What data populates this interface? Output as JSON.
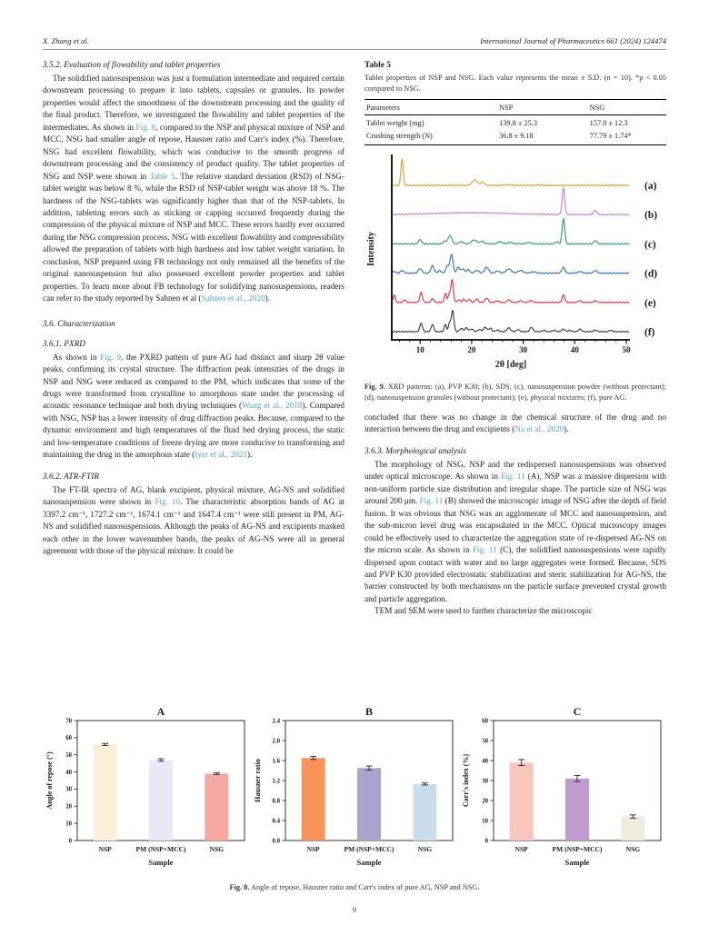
{
  "header": {
    "author": "X. Zhang et al.",
    "journal": "International Journal of Pharmaceutics 661 (2024) 124474"
  },
  "page_number": "9",
  "accent_link_color": "#4da6d9",
  "left": {
    "s352_heading": "3.5.2. Evaluation of flowability and tablet properties",
    "p352": [
      {
        "t": "The solidified nanosuspension was just a formulation intermediate and required certain downstream processing to prepare it into tablets, capsules or granules. Its powder properties would affect the smoothness of the downstream processing and the quality of the final product. Therefore, we investigated the flowability and tablet properties of the intermediates. As shown in "
      },
      {
        "t": "Fig. 8",
        "link": true
      },
      {
        "t": ", compared to the NSP and physical mixture of NSP and MCC, NSG had smaller angle of repose, Hausner ratio and Carr's index (%). Therefore, NSG had excellent flowability, which was conducive to the smooth progress of downstream processing and the consistency of product quality. The tablet properties of NSG and NSP were shown in "
      },
      {
        "t": "Table 5",
        "link": true
      },
      {
        "t": ". The relative standard deviation (RSD) of NSG-tablet weight was below 8 %, while the RSD of NSP-tablet weight was above 18 %. The hardness of the NSG-tablets was significantly higher than that of the NSP-tablets. In addition, tableting errors such as sticking or capping occurred frequently during the compression of the physical mixture of NSP and MCC. These errors hardly ever occurred during the NSG compression process. NSG with excellent flowability and compressibility allowed the preparation of tablets with high hardness and low tablet weight variation. In conclusion, NSP prepared using FB technology not only remained all the benefits of the original nanosuspension but also possessed excellent powder properties and tablet properties. To learn more about FB technology for solidifying nanosuspensions, readers can refer to the study reported by Sahnen et al ("
      },
      {
        "t": "Sahnen et al., 2020",
        "link": true
      },
      {
        "t": ")."
      }
    ],
    "s36_heading": "3.6. Characterization",
    "s361_heading": "3.6.1. PXRD",
    "p361": [
      {
        "t": "As shown in "
      },
      {
        "t": "Fig. 9",
        "link": true
      },
      {
        "t": ", the PXRD pattern of pure AG had distinct and sharp 2θ value peaks, confirming its crystal structure. The diffraction peak intensities of the drugs in NSP and NSG were reduced as compared to the PM, which indicates that some of the drugs were transformed from crystalline to amorphous state under the processing of acoustic resonance technique and both drying techniques ("
      },
      {
        "t": "Wang et al., 2018",
        "link": true
      },
      {
        "t": "). Compared with NSG, NSP has a lower intensity of drug diffraction peaks. Because, compared to the dynamic environment and high temperatures of the fluid bed drying process, the static and low-temperature conditions of freeze drying are more conducive to transforming and maintaining the drug in the amorphous state ("
      },
      {
        "t": "Iyer et al., 2021",
        "link": true
      },
      {
        "t": ")."
      }
    ],
    "s362_heading": "3.6.2. ATR-FTIR",
    "p362": [
      {
        "t": "The FT-IR spectra of AG, blank excipient, physical mixture, AG-NS and solidified nanosuspension were shown in "
      },
      {
        "t": "Fig. 10",
        "link": true
      },
      {
        "t": ". The characteristic absorption bands of AG at 3397.2 cm⁻¹, 1727.2 cm⁻¹, 1674.1 cm⁻¹ and 1647.4 cm⁻¹ were still present in PM, AG-NS and solidified nanosuspensions. Although the peaks of AG-NS and excipients masked each other in the lower wavenumber bands, the peaks of AG-NS were all in general agreement with those of the physical mixture. It could be"
      }
    ]
  },
  "right": {
    "p_cont": [
      {
        "t": "concluded that there was no change in the chemical structure of the drug and no interaction between the drug and excipients ("
      },
      {
        "t": "Na et al., 2020",
        "link": true
      },
      {
        "t": ")."
      }
    ],
    "s363_heading": "3.6.3. Morphological analysis",
    "p363a": [
      {
        "t": "The morphology of NSG, NSP and the redispersed nanosuspensions was observed under optical microscope. As shown in "
      },
      {
        "t": "Fig. 11",
        "link": true
      },
      {
        "t": " (A), NSP was a massive dispersion with non-uniform particle size distribution and irregular shape. The particle size of NSG was around 200 μm. "
      },
      {
        "t": "Fig. 11",
        "link": true
      },
      {
        "t": " (B) showed the microscopic image of NSG after the depth of field fusion. It was obvious that NSG was an agglomerate of MCC and nanosuspension, and the sub-micron level drug was encapsulated in the MCC. Optical microscopy images could be effectively used to characterize the aggregation state of re-dispersed AG-NS on the micron scale. As shown in "
      },
      {
        "t": "Fig. 11",
        "link": true
      },
      {
        "t": " (C), the solidified nanosuspensions were rapidly dispersed upon contact with water and no large aggregates were formed. Because, SDS and PVP K30 provided electrostatic stabilization and steric stabilization for AG-NS, the barrier constructed by both mechanisms on the particle surface prevented crystal growth and particle aggregation."
      }
    ],
    "p363b": [
      {
        "t": "TEM and SEM were used to further characterize the microscopic"
      }
    ]
  },
  "table5": {
    "title": "Table 5",
    "caption": "Tablet properties of NSP and NSG. Each value represents the mean ± S.D. (n = 10). *p < 0.05 compared to NSG.",
    "headers": [
      "Parameters",
      "NSP",
      "NSG"
    ],
    "rows": [
      {
        "cells": [
          "Tablet weight (mg)",
          "139.8 ± 25.3",
          "157.0 ± 12.3"
        ]
      },
      {
        "cells": [
          "Crushing strength (N)",
          "36.8 ± 9.18",
          "77.79 ± 1.74*"
        ]
      }
    ]
  },
  "fig9": {
    "caption": [
      {
        "t": "Fig. 9.",
        "b": true
      },
      {
        "t": " XRD patterns: (a), PVP K30; (b), SDS; (c), nanosuspension powder (without protectant); (d), nanosuspension granules (without protectant); (e), physical mixtures; (f), pure AG."
      }
    ]
  },
  "fig8": {
    "caption": [
      {
        "t": "Fig. 8.",
        "b": true
      },
      {
        "t": " Angle of repose, Hausner ratio and Carr's index of pure AG, NSP and NSG."
      }
    ]
  },
  "chart_data": [
    {
      "type": "line",
      "name": "xrd-patterns",
      "xlabel": "2θ [deg]",
      "ylabel": "Intensity",
      "xlim": [
        4.5,
        50.7
      ],
      "xticks": [
        10,
        20,
        30,
        40,
        50
      ],
      "legend_position": "right-outside",
      "series": [
        {
          "name": "(a)",
          "label": "PVP K30",
          "color": "#E0A02C",
          "peaks": [
            [
              6.5,
              1.0,
              0.22
            ],
            [
              20.6,
              0.2,
              0.5
            ],
            [
              22.1,
              0.13,
              0.35
            ],
            [
              27,
              0.03,
              0.5
            ],
            [
              33,
              0.02,
              0.5
            ]
          ]
        },
        {
          "name": "(b)",
          "label": "SDS",
          "color": "#C77FD8",
          "peaks": [
            [
              20,
              0.07,
              7
            ],
            [
              37.8,
              1.0,
              0.25
            ],
            [
              44,
              0.16,
              0.3
            ]
          ]
        },
        {
          "name": "(c)",
          "label": "nanosuspension powder (without protectant)",
          "color": "#2E9E6E",
          "peaks": [
            [
              10,
              0.16,
              0.3
            ],
            [
              14.8,
              0.1,
              0.3
            ],
            [
              15.8,
              0.32,
              0.35
            ],
            [
              18,
              0.08,
              0.4
            ],
            [
              20.5,
              0.15,
              0.5
            ],
            [
              22,
              0.1,
              0.4
            ],
            [
              25.5,
              0.08,
              0.5
            ],
            [
              27.5,
              0.06,
              0.4
            ],
            [
              31,
              0.05,
              0.5
            ],
            [
              36.5,
              0.08,
              0.3
            ],
            [
              37.8,
              0.95,
              0.25
            ],
            [
              44,
              0.13,
              0.3
            ]
          ]
        },
        {
          "name": "(d)",
          "label": "nanosuspension granules (without protectant)",
          "color": "#3372C8",
          "peaks": [
            [
              5,
              0.06,
              0.3
            ],
            [
              6.5,
              0.1,
              0.3
            ],
            [
              10,
              0.17,
              0.35
            ],
            [
              12.4,
              0.28,
              0.3
            ],
            [
              13.8,
              0.1,
              0.3
            ],
            [
              15.3,
              0.28,
              0.3
            ],
            [
              16.1,
              0.7,
              0.28
            ],
            [
              17.4,
              0.22,
              0.3
            ],
            [
              18.3,
              0.16,
              0.3
            ],
            [
              19.3,
              0.13,
              0.3
            ],
            [
              21,
              0.1,
              0.4
            ],
            [
              22.9,
              0.22,
              0.4
            ],
            [
              25,
              0.08,
              0.4
            ],
            [
              27.2,
              0.16,
              0.5
            ],
            [
              29.5,
              0.1,
              0.5
            ],
            [
              32,
              0.05,
              0.5
            ],
            [
              37.8,
              0.22,
              0.3
            ],
            [
              41,
              0.06,
              0.4
            ],
            [
              44,
              0.1,
              0.3
            ]
          ]
        },
        {
          "name": "(e)",
          "label": "physical mixtures",
          "color": "#E23440",
          "peaks": [
            [
              5,
              0.28,
              0.2
            ],
            [
              7,
              0.1,
              0.25
            ],
            [
              10.2,
              0.38,
              0.25
            ],
            [
              12.4,
              0.14,
              0.25
            ],
            [
              14.9,
              0.33,
              0.22
            ],
            [
              15.6,
              0.28,
              0.2
            ],
            [
              16.2,
              0.85,
              0.25
            ],
            [
              17.5,
              0.1,
              0.25
            ],
            [
              18.5,
              0.12,
              0.25
            ],
            [
              19.5,
              0.12,
              0.25
            ],
            [
              21,
              0.13,
              0.3
            ],
            [
              22.9,
              0.16,
              0.3
            ],
            [
              25,
              0.06,
              0.3
            ],
            [
              27.2,
              0.1,
              0.3
            ],
            [
              29.5,
              0.06,
              0.3
            ],
            [
              31.5,
              0.07,
              0.3
            ],
            [
              37.8,
              0.28,
              0.25
            ],
            [
              41,
              0.06,
              0.3
            ],
            [
              44,
              0.06,
              0.3
            ]
          ]
        },
        {
          "name": "(f)",
          "label": "pure AG",
          "color": "#3E3E3E",
          "peaks": [
            [
              10.2,
              0.32,
              0.25
            ],
            [
              12.4,
              0.27,
              0.25
            ],
            [
              14.9,
              0.27,
              0.22
            ],
            [
              15.7,
              0.32,
              0.2
            ],
            [
              16.3,
              0.8,
              0.25
            ],
            [
              18,
              0.12,
              0.3
            ],
            [
              19,
              0.14,
              0.3
            ],
            [
              20,
              0.1,
              0.3
            ],
            [
              21.5,
              0.08,
              0.3
            ],
            [
              22.6,
              0.17,
              0.3
            ],
            [
              23.6,
              0.13,
              0.3
            ],
            [
              25,
              0.06,
              0.3
            ],
            [
              27.2,
              0.14,
              0.35
            ],
            [
              29,
              0.08,
              0.3
            ],
            [
              31.6,
              0.16,
              0.3
            ],
            [
              34,
              0.05,
              0.3
            ],
            [
              36,
              0.05,
              0.3
            ],
            [
              37.8,
              0.1,
              0.3
            ],
            [
              39,
              0.05,
              0.3
            ],
            [
              41,
              0.09,
              0.3
            ],
            [
              44,
              0.06,
              0.3
            ],
            [
              47,
              0.05,
              0.3
            ]
          ]
        }
      ]
    },
    {
      "type": "bar",
      "title": "A",
      "categories": [
        "NSP",
        "PM (NSP+MCC)",
        "NSG"
      ],
      "values": [
        56,
        47,
        39
      ],
      "errors": [
        0.6,
        0.7,
        0.5
      ],
      "colors": [
        "#FAF0D8",
        "#E9E9F6",
        "#F5A8A0"
      ],
      "xlabel": "Sample",
      "ylabel": "Angle of repose (°)",
      "ylim": [
        0,
        70
      ],
      "ytick_step": 10,
      "ytick_decimals": 0
    },
    {
      "type": "bar",
      "title": "B",
      "categories": [
        "NSP",
        "PM (NSP+MCC)",
        "NSG"
      ],
      "values": [
        1.65,
        1.45,
        1.13
      ],
      "errors": [
        0.03,
        0.04,
        0.02
      ],
      "colors": [
        "#F8945A",
        "#A8A4CD",
        "#C9DCE9"
      ],
      "xlabel": "Sample",
      "ylabel": "Hausner ratio",
      "ylim": [
        0,
        2.4
      ],
      "ytick_step": 0.4,
      "ytick_decimals": 1
    },
    {
      "type": "bar",
      "title": "C",
      "categories": [
        "NSP",
        "PM (NSP+MCC)",
        "NSG"
      ],
      "values": [
        39,
        31,
        12
      ],
      "errors": [
        1.5,
        1.5,
        0.8
      ],
      "colors": [
        "#F8C6BD",
        "#C19BD0",
        "#EFECDE"
      ],
      "xlabel": "Sample",
      "ylabel": "Carr's index (%)",
      "ylim": [
        0,
        60
      ],
      "ytick_step": 10,
      "ytick_decimals": 0
    }
  ]
}
